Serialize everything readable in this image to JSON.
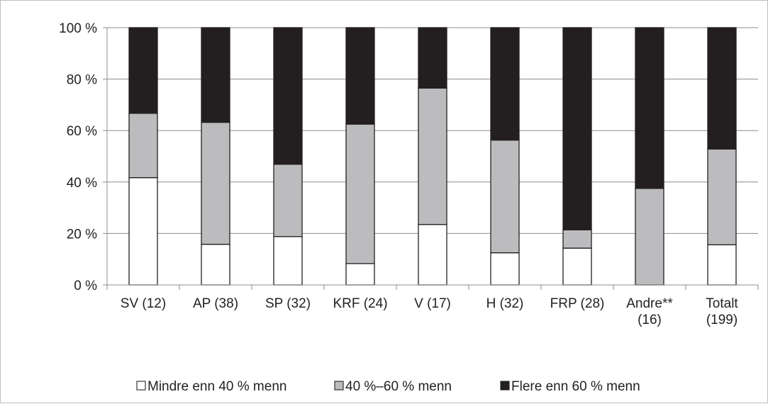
{
  "chart_data": {
    "type": "bar",
    "stacked": true,
    "normalized_percent": true,
    "categories": [
      [
        "SV (12)"
      ],
      [
        "AP (38)"
      ],
      [
        "SP (32)"
      ],
      [
        "KRF (24)"
      ],
      [
        "V (17)"
      ],
      [
        "H (32)"
      ],
      [
        "FRP (28)"
      ],
      [
        "Andre**",
        "(16)"
      ],
      [
        "Totalt",
        "(199)"
      ]
    ],
    "series": [
      {
        "name": "Mindre enn 40 % menn",
        "color": "#ffffff",
        "values": [
          41.7,
          15.8,
          18.8,
          8.3,
          23.5,
          12.5,
          14.3,
          0,
          15.6
        ]
      },
      {
        "name": "40 %–60 % menn",
        "color": "#bcbcbe",
        "values": [
          25.0,
          47.4,
          28.1,
          54.2,
          53.0,
          43.8,
          7.1,
          37.5,
          37.2
        ]
      },
      {
        "name": "Flere enn 60 % menn",
        "color": "#231f20",
        "values": [
          33.3,
          36.8,
          53.1,
          37.5,
          23.5,
          43.7,
          78.6,
          62.5,
          47.2
        ]
      }
    ],
    "y_ticks": [
      "0 %",
      "20 %",
      "40 %",
      "60 %",
      "80 %",
      "100 %"
    ],
    "ylim": [
      0,
      100
    ],
    "grid": true,
    "legend_position": "bottom"
  }
}
